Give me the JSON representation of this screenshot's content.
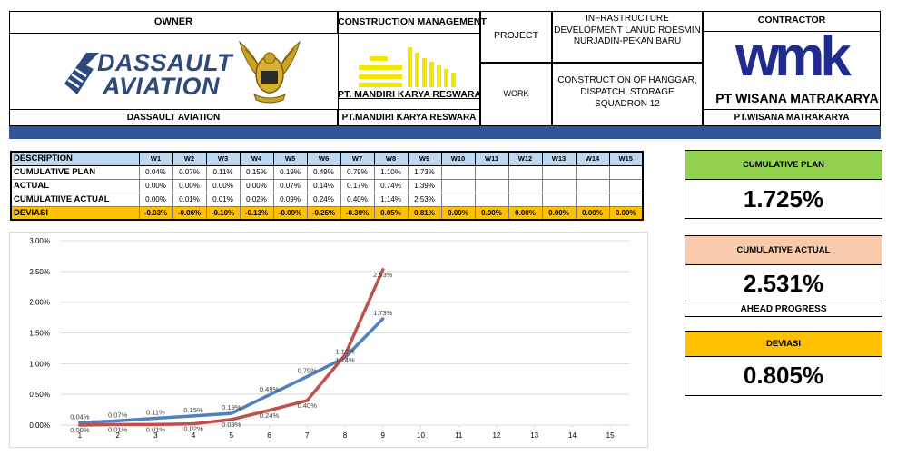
{
  "header": {
    "owner_label": "OWNER",
    "owner_logo_line1": "DASSAULT",
    "owner_logo_line2": "AVIATION",
    "owner_name": "DASSAULT AVIATION",
    "cm_label": "CONSTRUCTION MANAGEMENT",
    "cm_logo_text": "PT. MANDIRI KARYA RESWARA",
    "cm_name": "PT.MANDIRI KARYA RESWARA",
    "project_label": "PROJECT",
    "project_value": "INFRASTRUCTURE DEVELOPMENT LANUD ROESMIN NURJADIN-PEKAN BARU",
    "work_label": "WORK",
    "work_value": "CONSTRUCTION OF HANGGAR, DISPATCH, STORAGE SQUADRON 12",
    "contractor_label": "CONTRACTOR",
    "contractor_logo_mark": "wmk",
    "contractor_logo_text": "PT WISANA MATRAKARYA",
    "contractor_name": "PT.WISANA MATRAKARYA"
  },
  "table": {
    "description_header": "DESCRIPTION",
    "weeks": [
      "W1",
      "W2",
      "W3",
      "W4",
      "W5",
      "W6",
      "W7",
      "W8",
      "W9",
      "W10",
      "W11",
      "W12",
      "W13",
      "W14",
      "W15"
    ],
    "rows": [
      {
        "label": "CUMULATIVE PLAN",
        "values": [
          "0.04%",
          "0.07%",
          "0.11%",
          "0.15%",
          "0.19%",
          "0.49%",
          "0.79%",
          "1.10%",
          "1.73%",
          "",
          "",
          "",
          "",
          "",
          ""
        ]
      },
      {
        "label": "ACTUAL",
        "values": [
          "0.00%",
          "0.00%",
          "0.00%",
          "0.00%",
          "0.07%",
          "0.14%",
          "0.17%",
          "0.74%",
          "1.39%",
          "",
          "",
          "",
          "",
          "",
          ""
        ]
      },
      {
        "label": "CUMULATIIVE ACTUAL",
        "values": [
          "0.00%",
          "0.01%",
          "0.01%",
          "0.02%",
          "0.09%",
          "0.24%",
          "0.40%",
          "1.14%",
          "2.53%",
          "",
          "",
          "",
          "",
          "",
          ""
        ]
      },
      {
        "label": "DEVIASI",
        "values": [
          "-0.03%",
          "-0.06%",
          "-0.10%",
          "-0.13%",
          "-0.09%",
          "-0.25%",
          "-0.39%",
          "0.05%",
          "0.81%",
          "0.00%",
          "0.00%",
          "0.00%",
          "0.00%",
          "0.00%",
          "0.00%"
        ]
      }
    ]
  },
  "chart_data": {
    "type": "line",
    "x": [
      1,
      2,
      3,
      4,
      5,
      6,
      7,
      8,
      9,
      10,
      11,
      12,
      13,
      14,
      15
    ],
    "ylim": [
      0,
      3.0
    ],
    "y_ticks": [
      "0.00%",
      "0.50%",
      "1.00%",
      "1.50%",
      "2.00%",
      "2.50%",
      "3.00%"
    ],
    "y_tick_values": [
      0,
      0.5,
      1.0,
      1.5,
      2.0,
      2.5,
      3.0
    ],
    "grid": true,
    "legend": "none",
    "series": [
      {
        "color": "#4f81bd",
        "x": [
          1,
          2,
          3,
          4,
          5,
          6,
          7,
          8,
          9
        ],
        "values": [
          0.04,
          0.07,
          0.11,
          0.15,
          0.19,
          0.49,
          0.79,
          1.1,
          1.73
        ],
        "labels": [
          "0.04%",
          "0.07%",
          "0.11%",
          "0.15%",
          "0.19%",
          "0.49%",
          "0.79%",
          "1.10%",
          "1.73%"
        ]
      },
      {
        "color": "#c0504d",
        "x": [
          1,
          2,
          3,
          4,
          5,
          6,
          7,
          8,
          9
        ],
        "values": [
          0.0,
          0.01,
          0.01,
          0.02,
          0.09,
          0.24,
          0.4,
          1.14,
          2.53
        ],
        "labels": [
          "0.00%",
          "0.01%",
          "0.01%",
          "0.02%",
          "0.09%",
          "0.24%",
          "0.40%",
          "1.14%",
          "2.53%"
        ]
      }
    ]
  },
  "kpi": {
    "plan": {
      "label": "CUMULATIVE PLAN",
      "value": "1.725%",
      "color": "#92d050"
    },
    "actual": {
      "label": "CUMULATIVE ACTUAL",
      "value": "2.531%",
      "note": "AHEAD PROGRESS",
      "color": "#f8cbad"
    },
    "deviasi": {
      "label": "DEVIASI",
      "value": "0.805%",
      "color": "#ffc000"
    }
  }
}
